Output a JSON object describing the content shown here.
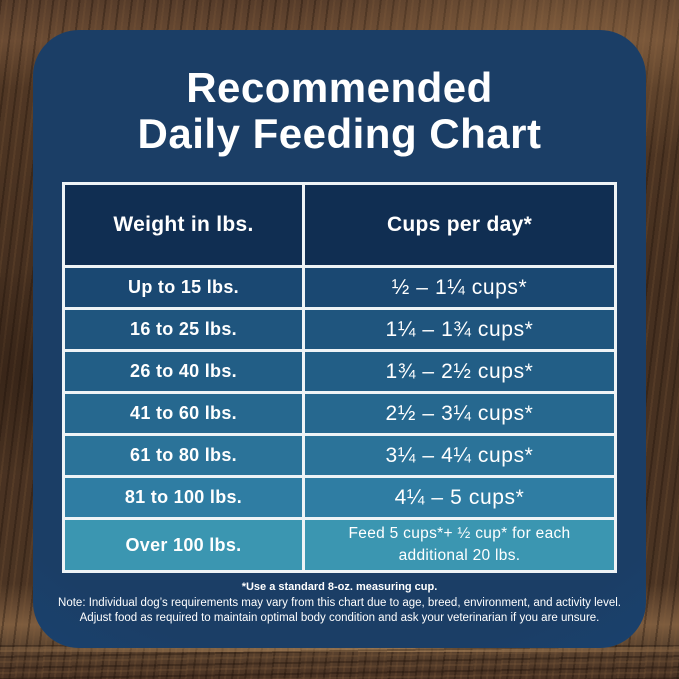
{
  "card": {
    "title_line1": "Recommended",
    "title_line2": "Daily Feeding Chart"
  },
  "table": {
    "col_headers": [
      "Weight in lbs.",
      "Cups per day*"
    ],
    "header_bg": "#102e52",
    "border_color": "#eef3f6",
    "rows": [
      {
        "weight": "Up to 15 lbs.",
        "cups": "½ – 1¼ cups*",
        "bg": "#1a4872"
      },
      {
        "weight": "16 to 25 lbs.",
        "cups": "1¼ – 1¾ cups*",
        "bg": "#1f557e"
      },
      {
        "weight": "26 to 40 lbs.",
        "cups": "1¾ – 2½ cups*",
        "bg": "#225e86"
      },
      {
        "weight": "41 to 60 lbs.",
        "cups": "2½ – 3¼ cups*",
        "bg": "#26688f"
      },
      {
        "weight": "61 to 80 lbs.",
        "cups": "3¼ – 4¼ cups*",
        "bg": "#2b7399"
      },
      {
        "weight": "81 to 100 lbs.",
        "cups": "4¼ – 5 cups*",
        "bg": "#2f7da3"
      },
      {
        "weight": "Over 100 lbs.",
        "cups": "Feed 5 cups*+ ½ cup* for each additional 20 lbs.",
        "bg": "#3b96b1"
      }
    ]
  },
  "notes": {
    "measuring_cup": "*Use a standard 8-oz. measuring cup.",
    "disclaimer_line1": "Note: Individual dog’s requirements may vary from this chart due to age, breed, environment, and activity level.",
    "disclaimer_line2": "Adjust food as required to maintain optimal body condition and ask your veterinarian if you are unsure."
  },
  "colors": {
    "card_navy": "#1b3e66",
    "card_edge_glow": "#174d85",
    "wood_brown": "#4a3323",
    "text_white": "#ffffff"
  },
  "chart_data": {
    "type": "table",
    "title": "Recommended Daily Feeding Chart",
    "columns": [
      "Weight in lbs.",
      "Cups per day*"
    ],
    "rows": [
      [
        "Up to 15 lbs.",
        "½ – 1¼ cups*"
      ],
      [
        "16 to 25 lbs.",
        "1¼ – 1¾ cups*"
      ],
      [
        "26 to 40 lbs.",
        "1¾ – 2½ cups*"
      ],
      [
        "41 to 60 lbs.",
        "2½ – 3¼ cups*"
      ],
      [
        "61 to 80 lbs.",
        "3¼ – 4¼ cups*"
      ],
      [
        "81 to 100 lbs.",
        "4¼ – 5 cups*"
      ],
      [
        "Over 100 lbs.",
        "Feed 5 cups*+ ½ cup* for each additional 20 lbs."
      ]
    ],
    "footnote": "*Use a standard 8-oz. measuring cup."
  }
}
